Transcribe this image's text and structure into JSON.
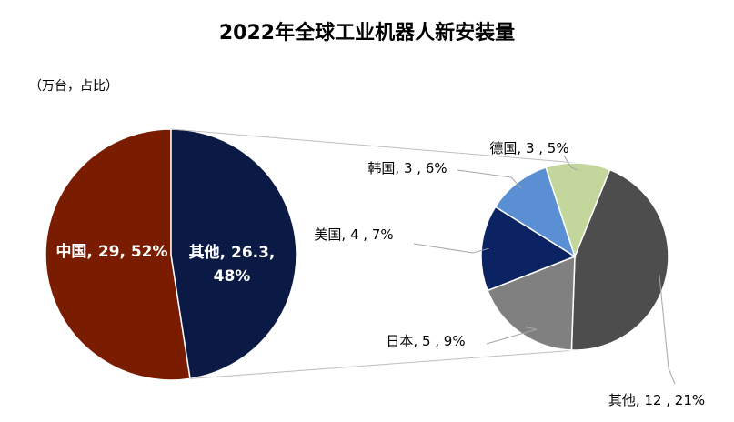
{
  "title": "2022年全球工业机器人新安装量",
  "unit_note": "（万台，占比）",
  "chart_data": {
    "type": "pie",
    "title": "2022年全球工业机器人新安装量",
    "unit": "（万台，占比）",
    "main_pie": {
      "slices": [
        {
          "label": "中国",
          "value": 29,
          "percent": "52%",
          "display": "中国, 29, 52%",
          "color": "#7a1c00"
        },
        {
          "label": "其他",
          "value": 26.3,
          "percent": "48%",
          "display_lines": [
            "其他, 26.3,",
            "48%"
          ],
          "color": "#0b1a45"
        }
      ]
    },
    "secondary_pie": {
      "breakdown_of": "其他",
      "slices": [
        {
          "label": "其他",
          "value": 12,
          "percent": "21%",
          "display": "其他, 12 , 21%",
          "color": "#4d4d4d"
        },
        {
          "label": "日本",
          "value": 5,
          "percent": "9%",
          "display": "日本, 5 , 9%",
          "color": "#808080"
        },
        {
          "label": "美国",
          "value": 4,
          "percent": "7%",
          "display": "美国, 4 , 7%",
          "color": "#0b2363"
        },
        {
          "label": "韩国",
          "value": 3,
          "percent": "6%",
          "display": "韩国, 3 , 6%",
          "color": "#5b8fd4"
        },
        {
          "label": "德国",
          "value": 3,
          "percent": "5%",
          "display": "德国, 3 , 5%",
          "color": "#c3d69b"
        }
      ]
    }
  }
}
